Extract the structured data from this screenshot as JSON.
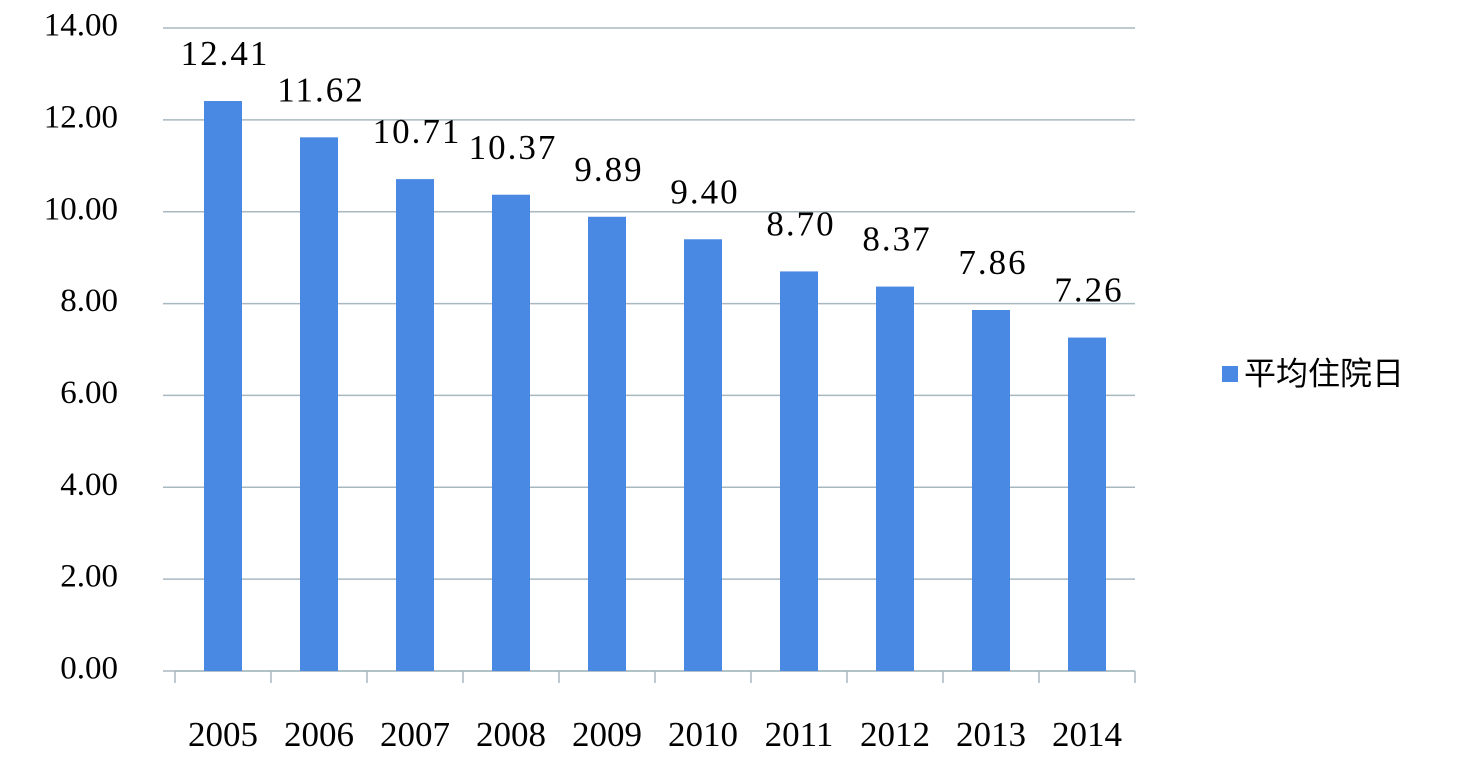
{
  "chart_data": {
    "type": "bar",
    "categories": [
      "2005",
      "2006",
      "2007",
      "2008",
      "2009",
      "2010",
      "2011",
      "2012",
      "2013",
      "2014"
    ],
    "series": [
      {
        "name": "平均住院日",
        "color": "#4a89e3",
        "values": [
          12.41,
          11.62,
          10.71,
          10.37,
          9.89,
          9.4,
          8.7,
          8.37,
          7.86,
          7.26
        ],
        "value_labels": [
          "12.41",
          "11.62",
          "10.71",
          "10.37",
          "9.89",
          "9.40",
          "8.70",
          "8.37",
          "7.86",
          "7.26"
        ]
      }
    ],
    "ylim": [
      0,
      14
    ],
    "yticks": [
      {
        "value": 0,
        "label": "0.00"
      },
      {
        "value": 2,
        "label": "2.00"
      },
      {
        "value": 4,
        "label": "4.00"
      },
      {
        "value": 6,
        "label": "6.00"
      },
      {
        "value": 8,
        "label": "8.00"
      },
      {
        "value": 10,
        "label": "10.00"
      },
      {
        "value": 12,
        "label": "12.00"
      },
      {
        "value": 14,
        "label": "14.00"
      }
    ],
    "grid": true,
    "legend": "right"
  }
}
